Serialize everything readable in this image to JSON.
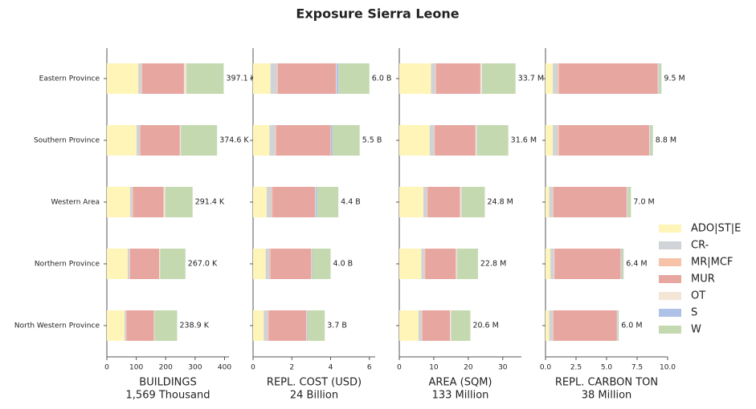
{
  "title": "Exposure Sierra Leone",
  "chart_data": [
    {
      "type": "bar",
      "xlabel": "BUILDINGS",
      "xlabel_note": "1,569 Thousand",
      "categories": [
        "Eastern Province",
        "Southern Province",
        "Western Area",
        "Northern Province",
        "North Western Province"
      ],
      "series": [
        {
          "name": "ADO|ST|E",
          "color": "#fff5b8",
          "values": [
            107,
            101,
            79,
            71,
            60
          ]
        },
        {
          "name": "CR-",
          "color": "#d0d3d8",
          "values": [
            11,
            11,
            8,
            6,
            5
          ]
        },
        {
          "name": "MR|MCF",
          "color": "#f6c2a8",
          "values": [
            2,
            2,
            2,
            2,
            2
          ]
        },
        {
          "name": "MUR",
          "color": "#e8a6a0",
          "values": [
            142,
            134,
            104,
            99,
            93
          ]
        },
        {
          "name": "OT",
          "color": "#f3e6d6",
          "values": [
            8,
            3,
            5,
            3,
            2
          ]
        },
        {
          "name": "S",
          "color": "#aec1e6",
          "values": [
            0.5,
            0.5,
            0.5,
            0.5,
            0.5
          ]
        },
        {
          "name": "W",
          "color": "#c5d9b0",
          "values": [
            126.6,
            123.1,
            92.9,
            85.5,
            76.4
          ]
        }
      ],
      "totals": [
        397.1,
        374.6,
        291.4,
        267.0,
        238.9
      ],
      "totals_labels": [
        "397.1 K",
        "374.6 K",
        "291.4 K",
        "267.0 K",
        "238.9 K"
      ],
      "xlim": [
        0,
        415
      ],
      "xticks": [
        0,
        100,
        200,
        300,
        400
      ]
    },
    {
      "type": "bar",
      "xlabel": "REPL. COST (USD)",
      "xlabel_note": "24 Billion",
      "categories": [
        "Eastern Province",
        "Southern Province",
        "Western Area",
        "Northern Province",
        "North Western Province"
      ],
      "series": [
        {
          "name": "ADO|ST|E",
          "color": "#fff5b8",
          "values": [
            0.9,
            0.85,
            0.7,
            0.65,
            0.55
          ]
        },
        {
          "name": "CR-",
          "color": "#d0d3d8",
          "values": [
            0.33,
            0.3,
            0.25,
            0.2,
            0.2
          ]
        },
        {
          "name": "MR|MCF",
          "color": "#f6c2a8",
          "values": [
            0.05,
            0.05,
            0.05,
            0.05,
            0.05
          ]
        },
        {
          "name": "MUR",
          "color": "#e8a6a0",
          "values": [
            3.0,
            2.8,
            2.2,
            2.1,
            1.95
          ]
        },
        {
          "name": "OT",
          "color": "#f3e6d6",
          "values": [
            0.02,
            0.02,
            0.02,
            0.02,
            0.02
          ]
        },
        {
          "name": "S",
          "color": "#aec1e6",
          "values": [
            0.1,
            0.08,
            0.08,
            0.03,
            0.03
          ]
        },
        {
          "name": "W",
          "color": "#c5d9b0",
          "values": [
            1.6,
            1.4,
            1.1,
            0.95,
            0.9
          ]
        }
      ],
      "totals": [
        6.0,
        5.5,
        4.4,
        4.0,
        3.7
      ],
      "totals_labels": [
        "6.0 B",
        "5.5 B",
        "4.4 B",
        "4.0 B",
        "3.7 B"
      ],
      "xlim": [
        0,
        6.3
      ],
      "xticks": [
        0,
        2,
        4,
        6
      ]
    },
    {
      "type": "bar",
      "xlabel": "AREA (SQM)",
      "xlabel_note": "133 Million",
      "categories": [
        "Eastern Province",
        "Southern Province",
        "Western Area",
        "Northern Province",
        "North Western Province"
      ],
      "series": [
        {
          "name": "ADO|ST|E",
          "color": "#fff5b8",
          "values": [
            9.2,
            8.8,
            7.0,
            6.4,
            5.6
          ]
        },
        {
          "name": "CR-",
          "color": "#d0d3d8",
          "values": [
            1.3,
            1.3,
            1.0,
            0.9,
            0.9
          ]
        },
        {
          "name": "MR|MCF",
          "color": "#f6c2a8",
          "values": [
            0.2,
            0.2,
            0.2,
            0.2,
            0.2
          ]
        },
        {
          "name": "MUR",
          "color": "#e8a6a0",
          "values": [
            12.8,
            11.8,
            9.4,
            8.9,
            8.0
          ]
        },
        {
          "name": "OT",
          "color": "#f3e6d6",
          "values": [
            0.5,
            0.4,
            0.4,
            0.3,
            0.3
          ]
        },
        {
          "name": "S",
          "color": "#aec1e6",
          "values": [
            0.1,
            0.1,
            0.1,
            0.1,
            0.1
          ]
        },
        {
          "name": "W",
          "color": "#c5d9b0",
          "values": [
            9.6,
            9.0,
            6.7,
            6.0,
            5.5
          ]
        }
      ],
      "totals": [
        33.7,
        31.6,
        24.8,
        22.8,
        20.6
      ],
      "totals_labels": [
        "33.7 M",
        "31.6 M",
        "24.8 M",
        "22.8 M",
        "20.6 M"
      ],
      "xlim": [
        0,
        35.4
      ],
      "xticks": [
        0,
        10,
        20,
        30
      ]
    },
    {
      "type": "bar",
      "xlabel": "REPL. CARBON TON",
      "xlabel_note": "38 Million",
      "categories": [
        "Eastern Province",
        "Southern Province",
        "Western Area",
        "Northern Province",
        "North Western Province"
      ],
      "series": [
        {
          "name": "ADO|ST|E",
          "color": "#fff5b8",
          "values": [
            0.6,
            0.6,
            0.3,
            0.4,
            0.3
          ]
        },
        {
          "name": "CR-",
          "color": "#d0d3d8",
          "values": [
            0.4,
            0.4,
            0.3,
            0.3,
            0.3
          ]
        },
        {
          "name": "MR|MCF",
          "color": "#f6c2a8",
          "values": [
            0.1,
            0.1,
            0.05,
            0.05,
            0.05
          ]
        },
        {
          "name": "MUR",
          "color": "#e8a6a0",
          "values": [
            8.1,
            7.4,
            6.0,
            5.4,
            5.2
          ]
        },
        {
          "name": "OT",
          "color": "#f3e6d6",
          "values": [
            0.05,
            0.05,
            0.05,
            0.05,
            0.05
          ]
        },
        {
          "name": "S",
          "color": "#aec1e6",
          "values": [
            0.05,
            0.05,
            0.05,
            0.05,
            0.05
          ]
        },
        {
          "name": "W",
          "color": "#c5d9b0",
          "values": [
            0.2,
            0.2,
            0.25,
            0.15,
            0.05
          ]
        }
      ],
      "totals": [
        9.5,
        8.8,
        7.0,
        6.4,
        6.0
      ],
      "totals_labels": [
        "9.5 M",
        "8.8 M",
        "7.0 M",
        "6.4 M",
        "6.0 M"
      ],
      "xlim": [
        0,
        10
      ],
      "xticks": [
        {
          "value": 0,
          "label": "0.0"
        },
        {
          "value": 2.5,
          "label": "2.5"
        },
        {
          "value": 5,
          "label": "5.0"
        },
        {
          "value": 7.5,
          "label": "7.5"
        },
        {
          "value": 10,
          "label": "10.0"
        }
      ]
    }
  ]
}
